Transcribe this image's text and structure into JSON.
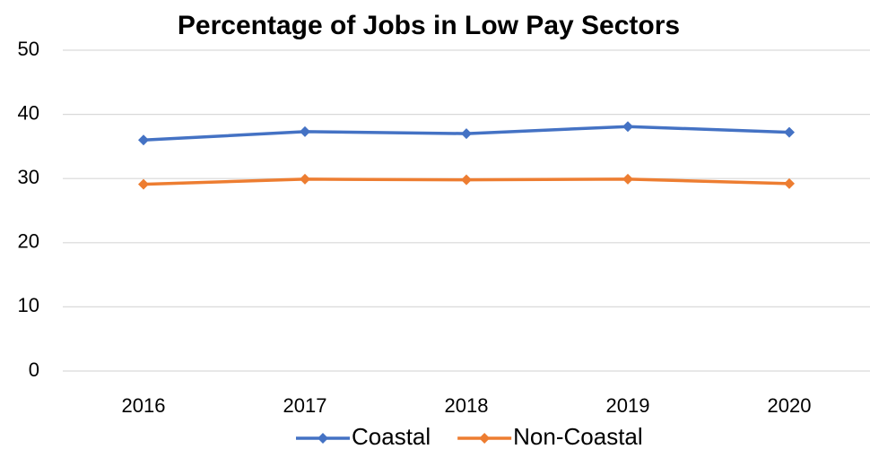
{
  "chart_data": {
    "type": "line",
    "title": "Percentage of Jobs in Low Pay Sectors",
    "categories": [
      "2016",
      "2017",
      "2018",
      "2019",
      "2020"
    ],
    "series": [
      {
        "name": "Coastal",
        "color": "#4472c4",
        "values": [
          36.0,
          37.3,
          37.0,
          38.1,
          37.2
        ]
      },
      {
        "name": "Non-Coastal",
        "color": "#ed7d31",
        "values": [
          29.1,
          29.9,
          29.8,
          29.9,
          29.2
        ]
      }
    ],
    "ylim": [
      0,
      50
    ],
    "yticks": [
      0,
      10,
      20,
      30,
      40,
      50
    ],
    "grid": true,
    "legend": "bottom"
  }
}
